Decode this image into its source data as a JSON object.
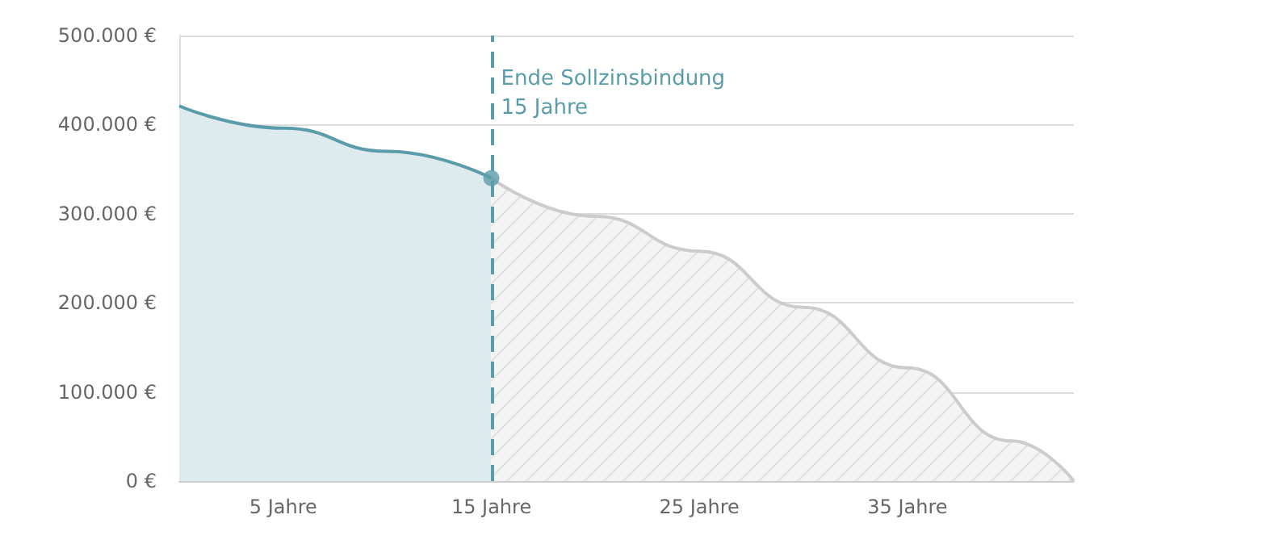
{
  "chart_data": {
    "type": "area",
    "xlim": [
      0,
      43
    ],
    "xticks": [
      {
        "value": 5,
        "label": "5 Jahre"
      },
      {
        "value": 15,
        "label": "15 Jahre"
      },
      {
        "value": 25,
        "label": "25 Jahre"
      },
      {
        "value": 35,
        "label": "35 Jahre"
      }
    ],
    "ylim": [
      0,
      500000
    ],
    "yticks": [
      {
        "value": 0,
        "label": "0 €"
      },
      {
        "value": 100000,
        "label": "100.000 €"
      },
      {
        "value": 200000,
        "label": "200.000 €"
      },
      {
        "value": 300000,
        "label": "300.000 €"
      },
      {
        "value": 400000,
        "label": "400.000 €"
      },
      {
        "value": 500000,
        "label": "500.000 €"
      }
    ],
    "grid": "y",
    "series": [
      {
        "color": "#5a9ca9",
        "x": [
          0,
          5,
          10,
          15
        ],
        "values": [
          421000,
          396000,
          370000,
          340000
        ]
      },
      {
        "color": "#cccccc",
        "x": [
          15,
          20,
          25,
          30,
          35,
          40,
          43
        ],
        "values": [
          340000,
          297000,
          258000,
          195000,
          127000,
          45000,
          0
        ]
      },
      {
        "type": "scatter",
        "marker": "circle",
        "color": "#5a9ca9",
        "x": [
          15
        ],
        "values": [
          340000
        ]
      }
    ],
    "ref_lines": [
      {
        "axis": "x",
        "value": 15,
        "label": "Ende Sollzinsbindung\n15 Jahre",
        "color": "#5a9ca9",
        "line_style": "dashed"
      }
    ]
  }
}
